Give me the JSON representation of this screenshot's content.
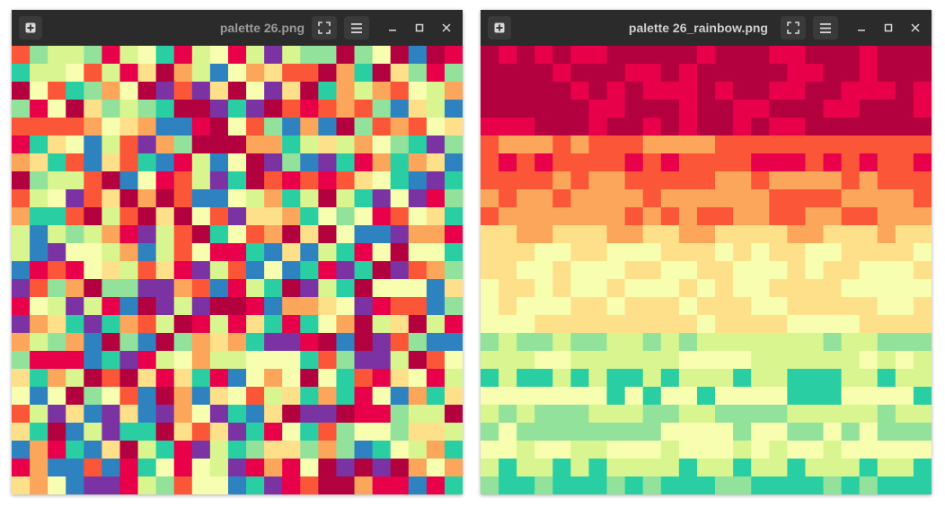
{
  "windows": [
    {
      "id": "left",
      "title": "palette 26.png",
      "mode": "random",
      "seed": 26,
      "grid": {
        "cols": 25,
        "rows": 25
      }
    },
    {
      "id": "right",
      "title": "palette 26_rainbow.png",
      "mode": "sorted",
      "seed": 27,
      "grid": {
        "cols": 25,
        "rows": 25
      }
    }
  ],
  "palette": [
    "#e8004a",
    "#b3003f",
    "#fc5638",
    "#fba65a",
    "#fee08b",
    "#f7feb0",
    "#d8f58f",
    "#92e29c",
    "#29cfa3",
    "#2f82c0",
    "#7b33a3"
  ],
  "colors": {
    "titlebar": "#2b2b2b",
    "button": "#3a3a3a",
    "icon": "#d8d8d8"
  },
  "icons": {
    "new": "plus-square-icon",
    "fullscreen": "fullscreen-icon",
    "menu": "hamburger-menu-icon",
    "minimize": "minimize-icon",
    "maximize": "maximize-icon",
    "close": "close-icon"
  }
}
